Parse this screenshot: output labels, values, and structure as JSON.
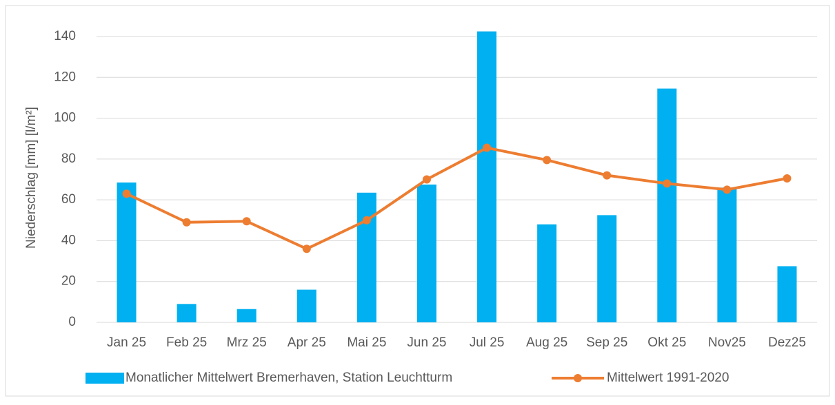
{
  "chart_data": {
    "type": "bar",
    "y_label": "Niederschlag [mm] [l/m²]",
    "categories": [
      "Jan 25",
      "Feb 25",
      "Mrz 25",
      "Apr 25",
      "Mai 25",
      "Jun 25",
      "Jul 25",
      "Aug 25",
      "Sep 25",
      "Okt 25",
      "Nov25",
      "Dez25"
    ],
    "series": [
      {
        "name": "Monatlicher Mittelwert Bremerhaven, Station Leuchtturm",
        "type": "bar",
        "color": "#00b0f0",
        "values": [
          68.5,
          9,
          6.5,
          16,
          63.5,
          67.5,
          142.5,
          48,
          52.5,
          114.5,
          66,
          27.5
        ]
      },
      {
        "name": "Mittelwert 1991-2020",
        "type": "line",
        "color": "#ed7d31",
        "values": [
          63,
          49,
          49.5,
          36,
          50,
          70,
          85.5,
          79.5,
          72,
          68,
          65,
          70.5
        ]
      }
    ],
    "ylim": [
      0,
      140
    ],
    "yticks": [
      0,
      20,
      40,
      60,
      80,
      100,
      120,
      140
    ],
    "grid": true,
    "legend": "bottom"
  }
}
